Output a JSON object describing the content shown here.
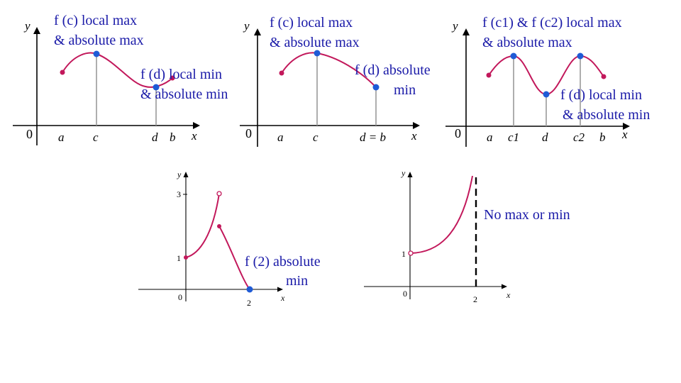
{
  "panels": {
    "p1": {
      "y": "y",
      "x": "x",
      "zero": "0",
      "a": "a",
      "c": "c",
      "d": "d",
      "b": "b",
      "max_line1": "f (c) local max",
      "max_line2": "& absolute max",
      "min_line1": "f (d) local min",
      "min_line2": "& absolute min"
    },
    "p2": {
      "y": "y",
      "x": "x",
      "zero": "0",
      "a": "a",
      "c": "c",
      "db": "d = b",
      "max_line1": "f (c) local max",
      "max_line2": "& absolute max",
      "min_line1": "f (d) absolute",
      "min_line2": "min"
    },
    "p3": {
      "y": "y",
      "x": "x",
      "zero": "0",
      "a": "a",
      "c1": "c1",
      "d": "d",
      "c2": "c2",
      "b": "b",
      "max_line1": "f (c1) & f (c2) local max",
      "max_line2": "& absolute max",
      "min_line1": "f (d) local min",
      "min_line2": "& absolute min"
    },
    "p4": {
      "y": "y",
      "x": "x",
      "zero": "0",
      "one": "1",
      "three": "3",
      "two": "2",
      "ann_line1": "f (2) absolute",
      "ann_line2": "min"
    },
    "p5": {
      "y": "y",
      "x": "x",
      "zero": "0",
      "one": "1",
      "two": "2",
      "ann": "No max or min"
    }
  },
  "colors": {
    "curve": "#c2185b",
    "point": "#1f5bd6",
    "annotation": "#1a1aa8"
  }
}
